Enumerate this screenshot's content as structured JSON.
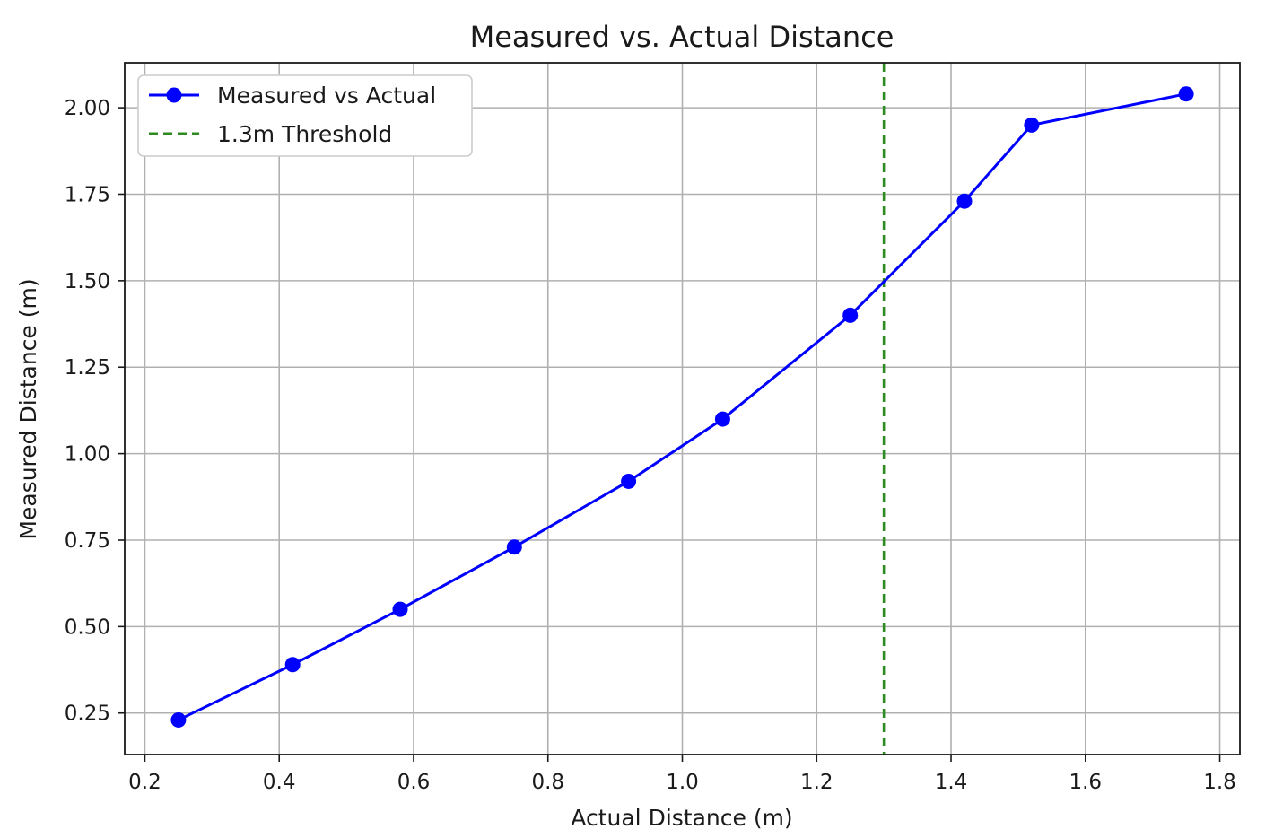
{
  "chart_data": {
    "type": "line",
    "title": "Measured vs. Actual Distance",
    "xlabel": "Actual Distance (m)",
    "ylabel": "Measured Distance (m)",
    "xlim": [
      0.17,
      1.83
    ],
    "ylim": [
      0.13,
      2.13
    ],
    "xticks": [
      0.2,
      0.4,
      0.6,
      0.8,
      1.0,
      1.2,
      1.4,
      1.6,
      1.8
    ],
    "xtick_labels": [
      "0.2",
      "0.4",
      "0.6",
      "0.8",
      "1.0",
      "1.2",
      "1.4",
      "1.6",
      "1.8"
    ],
    "yticks": [
      0.25,
      0.5,
      0.75,
      1.0,
      1.25,
      1.5,
      1.75,
      2.0
    ],
    "ytick_labels": [
      "0.25",
      "0.50",
      "0.75",
      "1.00",
      "1.25",
      "1.50",
      "1.75",
      "2.00"
    ],
    "grid": true,
    "legend_position": "top-left",
    "series": [
      {
        "name": "Measured vs Actual",
        "color": "#0000ff",
        "marker": "circle",
        "line_style": "solid",
        "x": [
          0.25,
          0.42,
          0.58,
          0.75,
          0.92,
          1.06,
          1.25,
          1.42,
          1.52,
          1.75
        ],
        "y": [
          0.23,
          0.39,
          0.55,
          0.73,
          0.92,
          1.1,
          1.4,
          1.73,
          1.95,
          2.04
        ]
      }
    ],
    "reference_lines": [
      {
        "name": "1.3m Threshold",
        "orientation": "vertical",
        "x": 1.3,
        "color": "#2e8b22",
        "line_style": "dashed"
      }
    ]
  }
}
